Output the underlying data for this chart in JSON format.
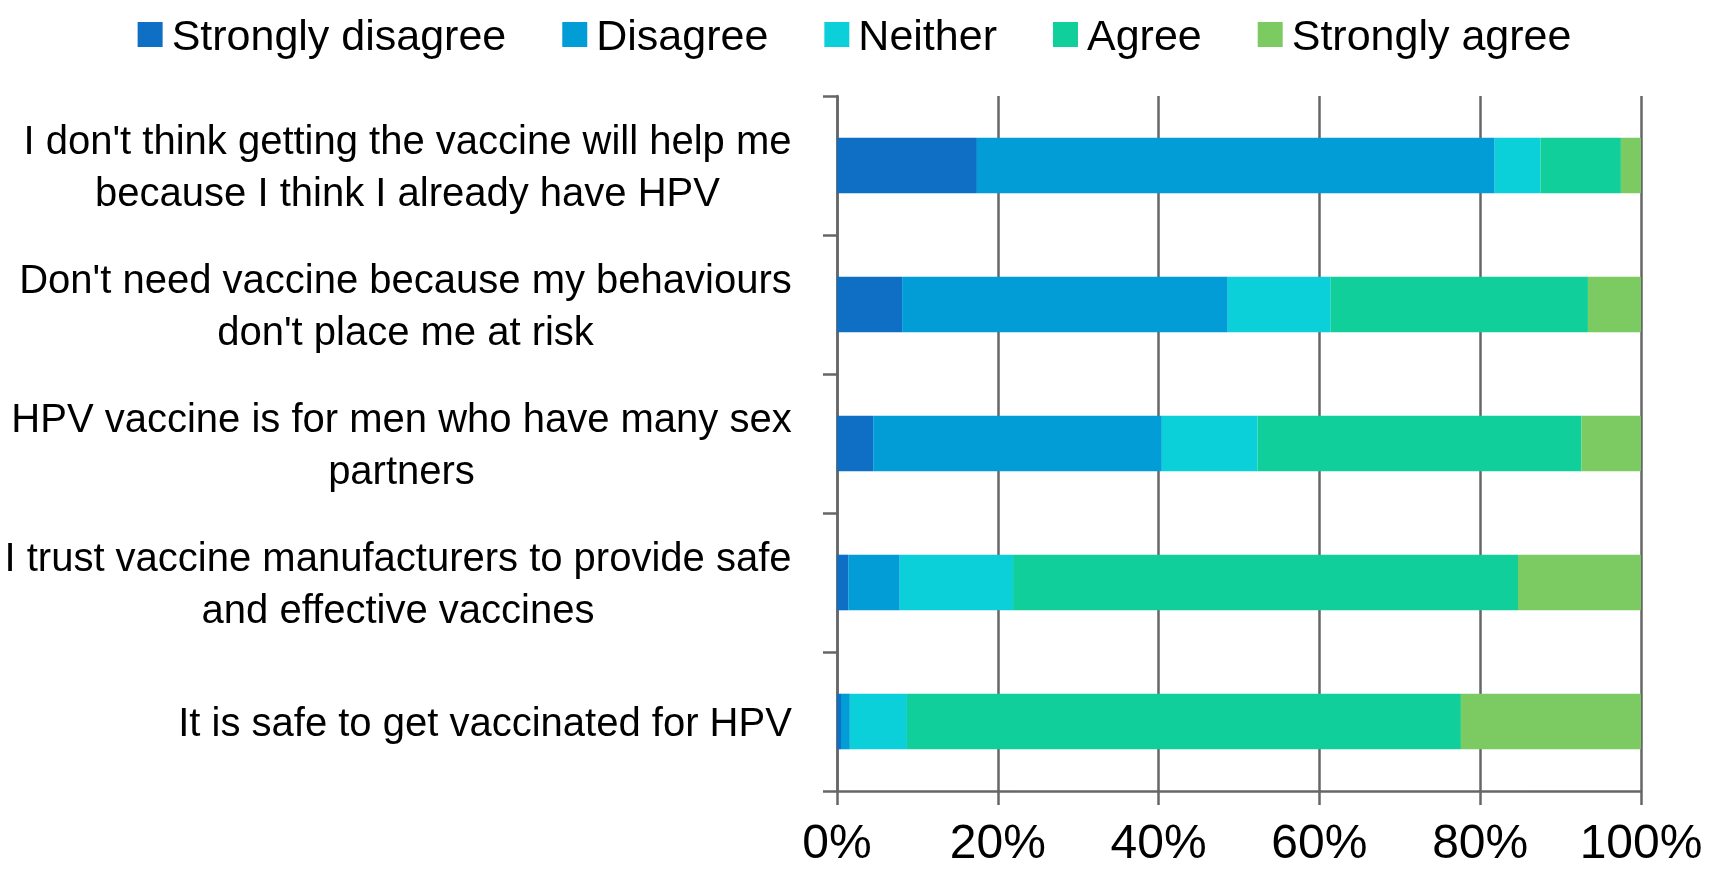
{
  "chart_data": {
    "type": "bar",
    "orientation": "horizontal",
    "stacked": true,
    "categories": [
      "I don't think getting the vaccine will help me because I think I already have HPV",
      "Don't need vaccine because my behaviours don't place me at risk",
      "HPV vaccine is for men who have many sex partners",
      "I trust vaccine manufacturers to provide safe and effective vaccines",
      "It is safe to get vaccinated for HPV"
    ],
    "series": [
      {
        "name": "Strongly disagree",
        "color": "#0e6fc4",
        "values": [
          17.4,
          8.1,
          4.5,
          1.4,
          0.5
        ]
      },
      {
        "name": "Disagree",
        "color": "#029cd6",
        "values": [
          64.4,
          40.5,
          35.9,
          6.4,
          1.1
        ]
      },
      {
        "name": "Neither",
        "color": "#0bd0d9",
        "values": [
          5.7,
          12.8,
          11.9,
          14.1,
          7.1
        ]
      },
      {
        "name": "Agree",
        "color": "#10cf9b",
        "values": [
          10.0,
          32.0,
          40.3,
          62.8,
          68.9
        ]
      },
      {
        "name": "Strongly agree",
        "color": "#7ccb62",
        "values": [
          2.5,
          6.6,
          7.4,
          15.3,
          22.4
        ]
      }
    ],
    "xlim": [
      0,
      100
    ],
    "xticks": [
      {
        "value": 0,
        "label": "0%"
      },
      {
        "value": 20,
        "label": "20%"
      },
      {
        "value": 40,
        "label": "40%"
      },
      {
        "value": 60,
        "label": "60%"
      },
      {
        "value": 80,
        "label": "80%"
      },
      {
        "value": 100,
        "label": "100%"
      }
    ],
    "grid": "x",
    "legend": "top"
  }
}
